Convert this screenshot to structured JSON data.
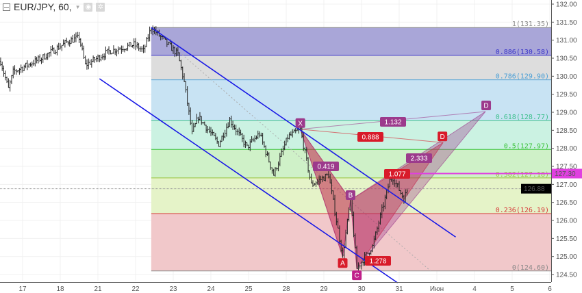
{
  "header": {
    "symbol": "EUR/JPY, 60,",
    "icons": [
      "collapse-icon",
      "dropdown-arrow-icon",
      "eye-icon",
      "gear-icon"
    ]
  },
  "chart_data": {
    "type": "ohlc-bar",
    "symbol": "EUR/JPY",
    "interval": "60",
    "x_ticks": [
      "17",
      "18",
      "21",
      "22",
      "23",
      "24",
      "25",
      "28",
      "29",
      "30",
      "31",
      "Июн",
      "4",
      "5",
      "6"
    ],
    "y_ticks": [
      "132.00",
      "131.50",
      "131.00",
      "130.50",
      "130.00",
      "129.50",
      "129.00",
      "128.50",
      "128.00",
      "127.50",
      "127.00",
      "126.50",
      "126.00",
      "125.50",
      "125.00",
      "124.50"
    ],
    "ylim": [
      124.3,
      132.1
    ],
    "grid": true,
    "price_path": [
      {
        "t": "17",
        "h": -14,
        "p": 130.41
      },
      {
        "t": "17",
        "h": -9,
        "p": 129.65
      },
      {
        "t": "17",
        "h": -6,
        "p": 130.12
      },
      {
        "t": "17",
        "h": 12,
        "p": 130.5
      },
      {
        "t": "18",
        "h": 5,
        "p": 130.97
      },
      {
        "t": "18",
        "h": 12,
        "p": 131.07
      },
      {
        "t": "18",
        "h": 16,
        "p": 130.31
      },
      {
        "t": "21",
        "h": 7,
        "p": 130.69
      },
      {
        "t": "21",
        "h": 23,
        "p": 130.88
      },
      {
        "t": "22",
        "h": 5,
        "p": 130.7
      },
      {
        "t": "22",
        "h": 10,
        "p": 131.35
      },
      {
        "t": "23",
        "h": 3,
        "p": 130.6
      },
      {
        "t": "23",
        "h": 7,
        "p": 129.84
      },
      {
        "t": "23",
        "h": 12,
        "p": 128.41
      },
      {
        "t": "23",
        "h": 16,
        "p": 128.88
      },
      {
        "t": "24",
        "h": 5,
        "p": 128.12
      },
      {
        "t": "24",
        "h": 12,
        "p": 128.79
      },
      {
        "t": "24",
        "h": 23,
        "p": 128.03
      },
      {
        "t": "25",
        "h": 7,
        "p": 128.41
      },
      {
        "t": "25",
        "h": 16,
        "p": 127.27
      },
      {
        "t": "28",
        "h": 1,
        "p": 128.31
      },
      {
        "t": "28",
        "h": 9,
        "p": 128.53
      },
      {
        "t": "28",
        "h": 16,
        "p": 126.99
      },
      {
        "t": "29",
        "h": 3,
        "p": 127.27
      },
      {
        "t": "29",
        "h": 12,
        "p": 124.99
      },
      {
        "t": "29",
        "h": 17,
        "p": 126.6
      },
      {
        "t": "29",
        "h": 21,
        "p": 124.67
      },
      {
        "t": "30",
        "h": 7,
        "p": 125.28
      },
      {
        "t": "30",
        "h": 19,
        "p": 127.27
      },
      {
        "t": "31",
        "h": 3,
        "p": 126.6
      },
      {
        "t": "31",
        "h": 6,
        "p": 126.94
      }
    ],
    "current_price": {
      "label": "126.88",
      "value": 126.88,
      "color": "#000000"
    },
    "alert_line": {
      "label": "127.30",
      "value": 127.3,
      "color": "#e040e0",
      "start": {
        "t": "30",
        "h": 20
      }
    },
    "fib_retracement": {
      "start": {
        "t": "22",
        "h": 10
      },
      "levels": [
        {
          "ratio": "1",
          "price": 131.35,
          "label": "1(131.35)",
          "line": "#888888",
          "fill": "#a9a6d8"
        },
        {
          "ratio": "0.886",
          "price": 130.58,
          "label": "0.886(130.58)",
          "line": "#3a35c8",
          "fill": "#dddddd"
        },
        {
          "ratio": "0.786",
          "price": 129.9,
          "label": "0.786(129.90)",
          "line": "#4a9fd6",
          "fill": "#c8e3f3"
        },
        {
          "ratio": "0.618",
          "price": 128.77,
          "label": "0.618(128.77)",
          "line": "#3cbf8c",
          "fill": "#cbf2e2"
        },
        {
          "ratio": "0.5",
          "price": 127.97,
          "label": "0.5(127.97)",
          "line": "#3ec43e",
          "fill": "#cff1c8"
        },
        {
          "ratio": "0.382",
          "price": 127.18,
          "label": "0.382(127.18)",
          "line": "#96c33a",
          "fill": "#e5f3c8"
        },
        {
          "ratio": "0.236",
          "price": 126.19,
          "label": "0.236(126.19)",
          "line": "#d83a3a",
          "fill": "#f1c8ca"
        },
        {
          "ratio": "0",
          "price": 124.6,
          "label": "0(124.60)",
          "line": "#888888",
          "fill": null
        }
      ]
    },
    "channel": {
      "color": "#1a1ae6",
      "upper": [
        {
          "t": "22",
          "h": 10,
          "p": 131.35
        },
        {
          "t": "Июн",
          "h": 12,
          "p": 125.54
        }
      ],
      "lower": [
        {
          "t": "21",
          "h": 1,
          "p": 129.93
        },
        {
          "t": "30",
          "h": 23,
          "p": 124.27
        }
      ]
    },
    "trend_dotted": [
      {
        "t": "22",
        "h": 10,
        "p": 131.35
      },
      {
        "t": "31",
        "h": 20,
        "p": 124.6
      }
    ],
    "harmonic_patterns": {
      "points": {
        "X": {
          "t": "28",
          "h": 9,
          "p": 128.53
        },
        "A": {
          "t": "29",
          "h": 12,
          "p": 124.99
        },
        "B": {
          "t": "29",
          "h": 17,
          "p": 126.57
        },
        "C": {
          "t": "29",
          "h": 21,
          "p": 124.67
        },
        "D_red": {
          "t": "Июн",
          "h": 4,
          "p": 128.16
        },
        "D_purple": {
          "t": "4",
          "h": 7,
          "p": 129.02
        }
      },
      "labels": {
        "X": "X",
        "A": "A",
        "B": "B",
        "C": "C",
        "D": "D"
      },
      "ratios": {
        "xb": "0.419",
        "ac": "1.278",
        "bd_red": "1.077",
        "bd_purple": "2.333",
        "xd_red": "0.888",
        "xd_purple": "1.132"
      },
      "colors": {
        "red": "#d81b2a",
        "purple": "#9c3a8c"
      }
    }
  }
}
